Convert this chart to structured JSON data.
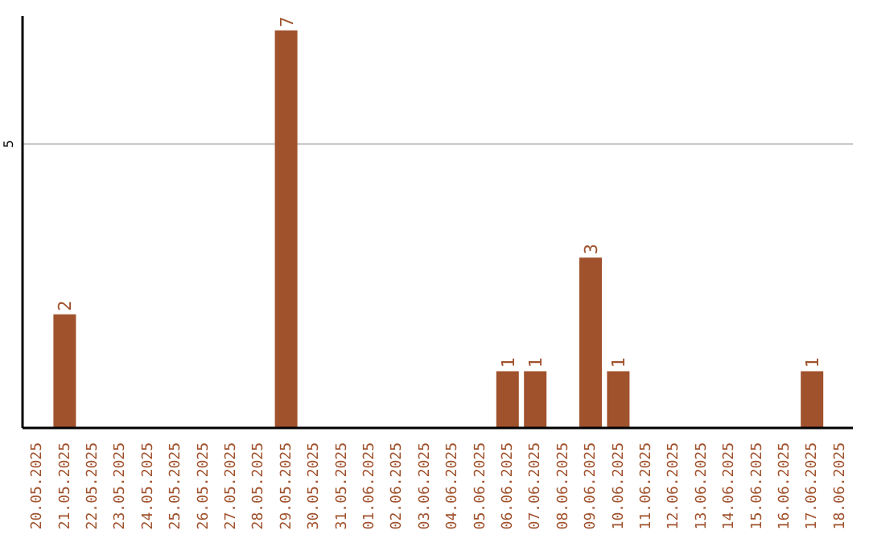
{
  "chart_data": {
    "type": "bar",
    "categories": [
      "20.05.2025",
      "21.05.2025",
      "22.05.2025",
      "23.05.2025",
      "24.05.2025",
      "25.05.2025",
      "26.05.2025",
      "27.05.2025",
      "28.05.2025",
      "29.05.2025",
      "30.05.2025",
      "31.05.2025",
      "01.06.2025",
      "02.06.2025",
      "03.06.2025",
      "04.06.2025",
      "05.06.2025",
      "06.06.2025",
      "07.06.2025",
      "08.06.2025",
      "09.06.2025",
      "10.06.2025",
      "11.06.2025",
      "12.06.2025",
      "13.06.2025",
      "14.06.2025",
      "15.06.2025",
      "16.06.2025",
      "17.06.2025",
      "18.06.2025"
    ],
    "values": [
      0,
      2,
      0,
      0,
      0,
      0,
      0,
      0,
      0,
      7,
      0,
      0,
      0,
      0,
      0,
      0,
      0,
      1,
      1,
      0,
      3,
      1,
      0,
      0,
      0,
      0,
      0,
      0,
      1,
      0
    ],
    "value_labels": [
      null,
      "2",
      null,
      null,
      null,
      null,
      null,
      null,
      null,
      "7",
      null,
      null,
      null,
      null,
      null,
      null,
      null,
      "1",
      "1",
      null,
      "3",
      "1",
      null,
      null,
      null,
      null,
      null,
      null,
      "1",
      null
    ],
    "color": "#a0522d",
    "ylim": [
      0,
      7.25
    ],
    "yticks": [
      5
    ],
    "grid": "y"
  }
}
